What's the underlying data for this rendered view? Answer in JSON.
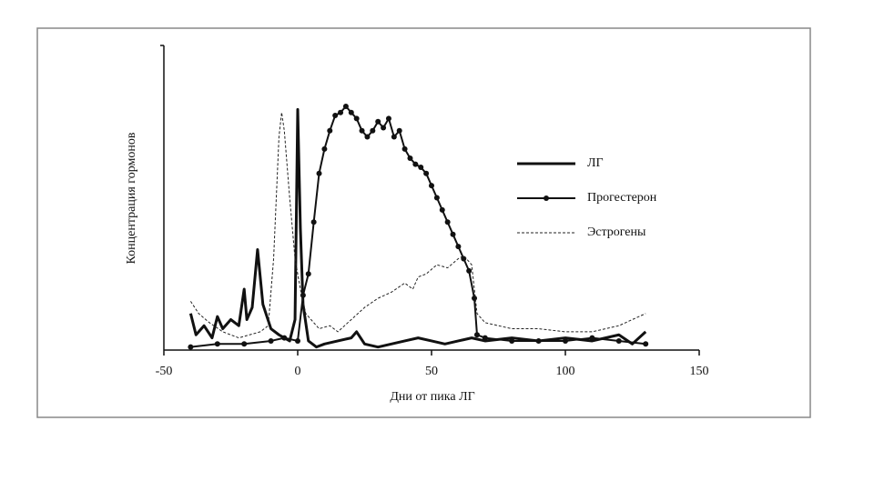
{
  "chart_data": {
    "type": "line",
    "xlabel": "Дни от пика ЛГ",
    "ylabel": "Концентрация гормонов",
    "xlim": [
      -50,
      150
    ],
    "xticks": [
      -50,
      0,
      50,
      100,
      150
    ],
    "ylim": [
      0,
      100
    ],
    "legend": "right",
    "series": [
      {
        "name": "ЛГ",
        "color": "#111111",
        "line_style": "solid",
        "width": 3,
        "marker": "none",
        "x": [
          -40,
          -38,
          -35,
          -32,
          -30,
          -28,
          -25,
          -22,
          -20,
          -19,
          -17,
          -15,
          -13,
          -10,
          -7,
          -5,
          -3,
          -1,
          0,
          1,
          2,
          4,
          7,
          10,
          15,
          20,
          22,
          25,
          30,
          35,
          40,
          45,
          50,
          55,
          60,
          65,
          70,
          80,
          90,
          100,
          110,
          120,
          125,
          130
        ],
        "values": [
          12,
          5,
          8,
          4,
          11,
          7,
          10,
          8,
          20,
          10,
          14,
          33,
          15,
          7,
          5,
          4,
          3,
          10,
          79,
          40,
          15,
          3,
          1,
          2,
          3,
          4,
          6,
          2,
          1,
          2,
          3,
          4,
          3,
          2,
          3,
          4,
          3,
          4,
          3,
          4,
          3,
          5,
          2,
          6
        ]
      },
      {
        "name": "Прогестерон",
        "color": "#111111",
        "line_style": "solid",
        "width": 2,
        "marker": "circle",
        "x": [
          -40,
          -30,
          -20,
          -10,
          -5,
          0,
          2,
          4,
          6,
          8,
          10,
          12,
          14,
          16,
          18,
          20,
          22,
          24,
          26,
          28,
          30,
          32,
          34,
          36,
          38,
          40,
          42,
          44,
          46,
          48,
          50,
          52,
          54,
          56,
          58,
          60,
          62,
          64,
          66,
          67,
          70,
          80,
          90,
          100,
          110,
          120,
          130
        ],
        "values": [
          1,
          2,
          2,
          3,
          4,
          3,
          18,
          25,
          42,
          58,
          66,
          72,
          77,
          78,
          80,
          78,
          76,
          72,
          70,
          72,
          75,
          73,
          76,
          70,
          72,
          66,
          63,
          61,
          60,
          58,
          54,
          50,
          46,
          42,
          38,
          34,
          30,
          26,
          17,
          5,
          4,
          3,
          3,
          3,
          4,
          3,
          2
        ]
      },
      {
        "name": "Эстрогены",
        "color": "#222222",
        "line_style": "dotted",
        "width": 1,
        "marker": "none",
        "x": [
          -40,
          -37,
          -33,
          -28,
          -22,
          -18,
          -14,
          -11,
          -9,
          -8,
          -7,
          -6,
          -5,
          -3,
          -1,
          1,
          3,
          5,
          8,
          12,
          15,
          20,
          25,
          30,
          35,
          40,
          43,
          45,
          48,
          52,
          56,
          60,
          62,
          65,
          67,
          70,
          80,
          90,
          100,
          110,
          120,
          130
        ],
        "values": [
          16,
          12,
          9,
          6,
          4,
          5,
          6,
          8,
          30,
          50,
          70,
          78,
          72,
          50,
          30,
          20,
          12,
          10,
          7,
          8,
          6,
          10,
          14,
          17,
          19,
          22,
          20,
          24,
          25,
          28,
          27,
          30,
          31,
          28,
          12,
          9,
          7,
          7,
          6,
          6,
          8,
          12
        ]
      }
    ]
  }
}
